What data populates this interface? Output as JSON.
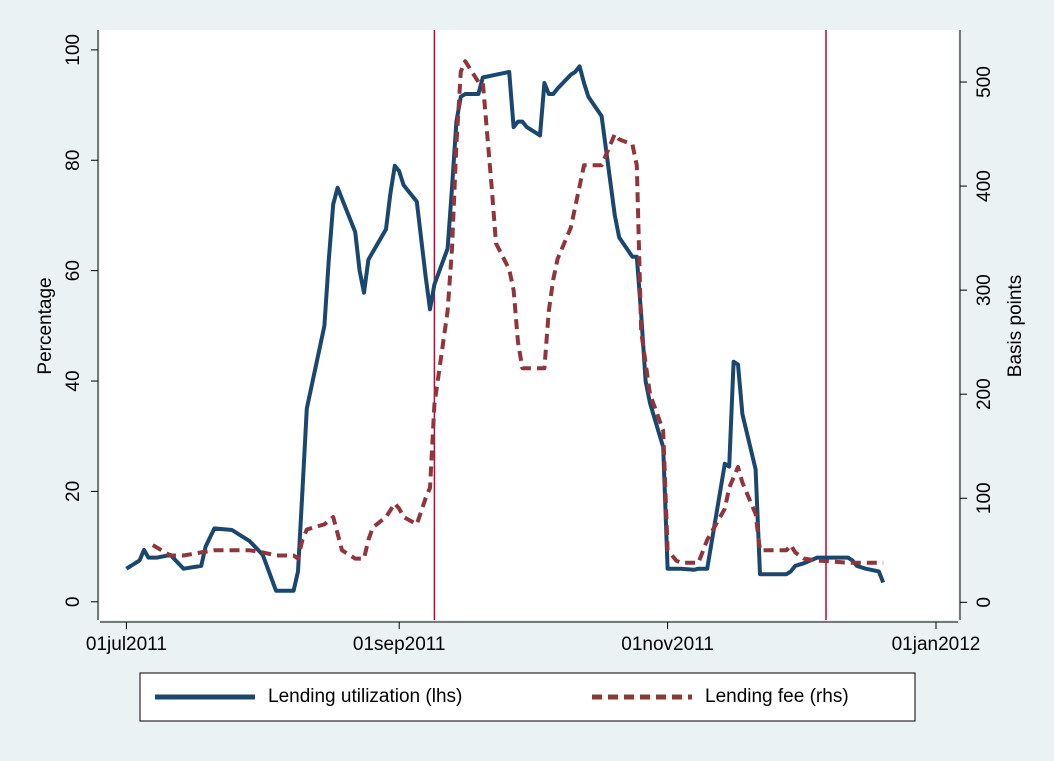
{
  "chart_data": {
    "type": "line",
    "y_label": "Percentage",
    "y2_label": "Basis points",
    "xlim": [
      "2011-06-25",
      "2012-01-06"
    ],
    "xticks": [
      {
        "value": "2011-07-01",
        "label": "01jul2011"
      },
      {
        "value": "2011-09-01",
        "label": "01sep2011"
      },
      {
        "value": "2011-11-01",
        "label": "01nov2011"
      },
      {
        "value": "2012-01-01",
        "label": "01jan2012"
      }
    ],
    "ylim": [
      -3.3,
      103.6
    ],
    "yticks": [
      0,
      20,
      40,
      60,
      80,
      100
    ],
    "y2lim": [
      -17,
      550
    ],
    "y2ticks": [
      0,
      100,
      200,
      300,
      400,
      500
    ],
    "vlines": [
      "2011-09-09",
      "2011-12-07"
    ],
    "vline_color": "#c10534",
    "legend": "bottom",
    "series": [
      {
        "name": "Lending utilization (lhs)",
        "color": "#1a476f",
        "dash": false,
        "x": [
          "2011-07-01",
          "2011-07-04",
          "2011-07-05",
          "2011-07-06",
          "2011-07-08",
          "2011-07-11",
          "2011-07-14",
          "2011-07-18",
          "2011-07-19",
          "2011-07-21",
          "2011-07-25",
          "2011-07-27",
          "2011-07-29",
          "2011-08-01",
          "2011-08-04",
          "2011-08-08",
          "2011-08-09",
          "2011-08-10",
          "2011-08-11",
          "2011-08-15",
          "2011-08-16",
          "2011-08-17",
          "2011-08-18",
          "2011-08-22",
          "2011-08-23",
          "2011-08-24",
          "2011-08-25",
          "2011-08-29",
          "2011-08-30",
          "2011-08-31",
          "2011-09-01",
          "2011-09-02",
          "2011-09-05",
          "2011-09-07",
          "2011-09-08",
          "2011-09-09",
          "2011-09-12",
          "2011-09-13",
          "2011-09-14",
          "2011-09-15",
          "2011-09-16",
          "2011-09-19",
          "2011-09-20",
          "2011-09-23",
          "2011-09-26",
          "2011-09-27",
          "2011-09-28",
          "2011-09-29",
          "2011-09-30",
          "2011-10-03",
          "2011-10-04",
          "2011-10-05",
          "2011-10-06",
          "2011-10-07",
          "2011-10-10",
          "2011-10-11",
          "2011-10-12",
          "2011-10-13",
          "2011-10-14",
          "2011-10-17",
          "2011-10-18",
          "2011-10-19",
          "2011-10-20",
          "2011-10-21",
          "2011-10-24",
          "2011-10-25",
          "2011-10-26",
          "2011-10-27",
          "2011-10-28",
          "2011-10-31",
          "2011-11-01",
          "2011-11-02",
          "2011-11-03",
          "2011-11-04",
          "2011-11-07",
          "2011-11-08",
          "2011-11-09",
          "2011-11-10",
          "2011-11-14",
          "2011-11-15",
          "2011-11-16",
          "2011-11-17",
          "2011-11-18",
          "2011-11-21",
          "2011-11-22",
          "2011-11-23",
          "2011-11-28",
          "2011-11-29",
          "2011-11-30",
          "2011-12-02",
          "2011-12-05",
          "2011-12-06",
          "2011-12-12",
          "2011-12-13",
          "2011-12-14",
          "2011-12-16",
          "2011-12-19",
          "2011-12-20"
        ],
        "values": [
          6,
          7.5,
          9.4,
          8,
          8,
          8.5,
          6,
          6.5,
          10,
          13.3,
          13,
          12,
          11,
          8.5,
          2,
          2,
          5.5,
          20,
          35,
          50,
          62,
          72,
          75,
          67,
          60,
          56,
          62,
          67.5,
          74,
          79,
          78,
          75.5,
          72.5,
          59,
          53,
          57.5,
          64,
          75,
          87,
          91.5,
          92,
          92,
          95,
          95.5,
          96,
          86,
          87,
          87,
          86,
          84.5,
          94,
          92,
          92,
          93,
          95.5,
          96,
          97,
          94,
          91.5,
          88,
          82,
          76,
          70,
          66,
          62.5,
          62.5,
          52,
          40,
          36,
          28,
          6,
          6,
          6,
          6,
          5.8,
          6,
          6,
          6,
          25,
          24.5,
          43.5,
          43,
          34,
          24,
          5,
          5,
          5,
          5.5,
          6.5,
          7,
          8,
          8,
          8,
          7.5,
          6.5,
          6,
          5.5,
          3.5
        ]
      },
      {
        "name": "Lending fee (rhs)",
        "color": "#90353b",
        "dash": true,
        "axis": "y2",
        "x": [
          "2011-07-07",
          "2011-07-11",
          "2011-07-14",
          "2011-07-18",
          "2011-07-21",
          "2011-07-25",
          "2011-07-29",
          "2011-08-01",
          "2011-08-04",
          "2011-08-08",
          "2011-08-09",
          "2011-08-10",
          "2011-08-11",
          "2011-08-15",
          "2011-08-17",
          "2011-08-19",
          "2011-08-22",
          "2011-08-23",
          "2011-08-24",
          "2011-08-25",
          "2011-08-26",
          "2011-08-29",
          "2011-08-31",
          "2011-09-01",
          "2011-09-02",
          "2011-09-05",
          "2011-09-07",
          "2011-09-08",
          "2011-09-09",
          "2011-09-12",
          "2011-09-13",
          "2011-09-14",
          "2011-09-15",
          "2011-09-16",
          "2011-09-19",
          "2011-09-20",
          "2011-09-22",
          "2011-09-23",
          "2011-09-26",
          "2011-09-27",
          "2011-09-28",
          "2011-09-29",
          "2011-09-30",
          "2011-10-03",
          "2011-10-04",
          "2011-10-05",
          "2011-10-06",
          "2011-10-07",
          "2011-10-10",
          "2011-10-11",
          "2011-10-13",
          "2011-10-14",
          "2011-10-17",
          "2011-10-18",
          "2011-10-19",
          "2011-10-20",
          "2011-10-21",
          "2011-10-24",
          "2011-10-25",
          "2011-10-26",
          "2011-10-27",
          "2011-10-28",
          "2011-10-31",
          "2011-11-01",
          "2011-11-02",
          "2011-11-03",
          "2011-11-04",
          "2011-11-07",
          "2011-11-08",
          "2011-11-10",
          "2011-11-14",
          "2011-11-15",
          "2011-11-16",
          "2011-11-17",
          "2011-11-18",
          "2011-11-21",
          "2011-11-22",
          "2011-11-23",
          "2011-11-28",
          "2011-11-29",
          "2011-11-30",
          "2011-12-02",
          "2011-12-05",
          "2011-12-06",
          "2011-12-12",
          "2011-12-13",
          "2011-12-14",
          "2011-12-16",
          "2011-12-19",
          "2011-12-20"
        ],
        "values": [
          55,
          45,
          45,
          48,
          50,
          50,
          50,
          48,
          45,
          45,
          42,
          60,
          70,
          75,
          82,
          50,
          42,
          42,
          42,
          60,
          72,
          82,
          95,
          90,
          82,
          75,
          100,
          110,
          190,
          280,
          340,
          440,
          510,
          520,
          500,
          500,
          400,
          345,
          320,
          300,
          250,
          225,
          225,
          225,
          225,
          280,
          310,
          330,
          360,
          380,
          420,
          420,
          420,
          430,
          440,
          450,
          445,
          440,
          420,
          260,
          230,
          200,
          165,
          50,
          45,
          40,
          38,
          38,
          38,
          60,
          90,
          110,
          120,
          130,
          115,
          85,
          50,
          50,
          50,
          55,
          48,
          42,
          40,
          40,
          38,
          38,
          38,
          38,
          38,
          38
        ]
      }
    ]
  }
}
